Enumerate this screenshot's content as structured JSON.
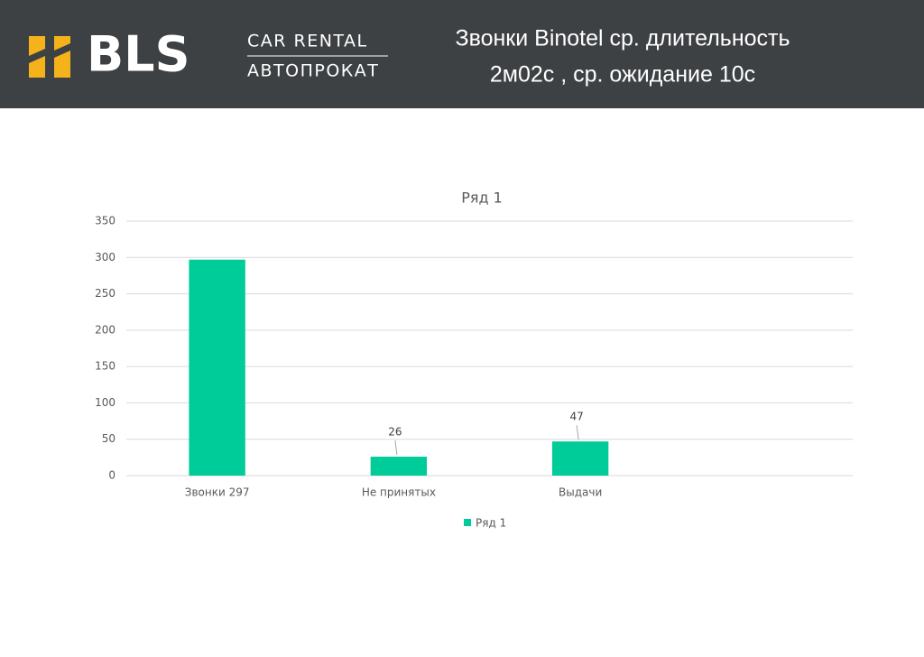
{
  "header": {
    "logo": "BLS",
    "brand_top": "CAR RENTAL",
    "brand_bottom": "АВТОПРОКАТ",
    "title_lines": [
      "Звонки Binotel ср. длительность",
      "2м02с , ср. ожидание 10с"
    ]
  },
  "chart_data": {
    "type": "bar",
    "title": "Ряд 1",
    "categories": [
      "Звонки 297",
      "Не принятых",
      "Выдачи",
      null
    ],
    "series": [
      {
        "name": "Ряд 1",
        "color": "#00cc99",
        "values": [
          297,
          26,
          47,
          null
        ]
      }
    ],
    "data_labels": [
      false,
      true,
      true,
      false
    ],
    "ylim": [
      0,
      350
    ],
    "yticks": [
      0,
      50,
      100,
      150,
      200,
      250,
      300,
      350
    ],
    "grid": true,
    "legend": "bottom"
  }
}
